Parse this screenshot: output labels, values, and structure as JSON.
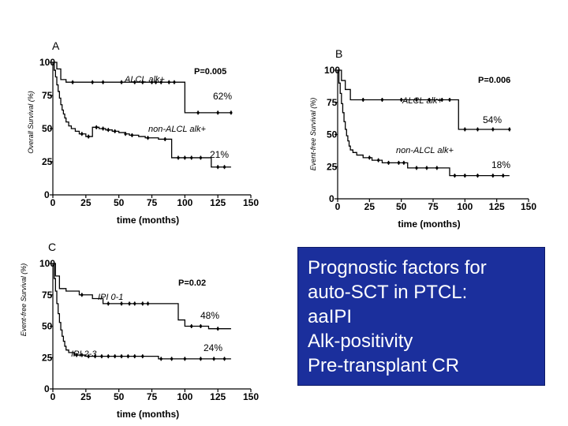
{
  "chart_data": [
    {
      "type": "line",
      "panel": "A",
      "ylabel": "Overall Survival (%)",
      "xlabel": "time (months)",
      "xticks": [
        "0",
        "25",
        "50",
        "75",
        "100",
        "125",
        "150"
      ],
      "yticks": [
        "0",
        "25",
        "50",
        "75",
        "100"
      ],
      "xlim": [
        0,
        150
      ],
      "ylim": [
        0,
        100
      ],
      "p_value": "P=0.005",
      "series": [
        {
          "name": "ALCL alk+",
          "end_label": "62%",
          "steps": [
            [
              0,
              100
            ],
            [
              3,
              95
            ],
            [
              6,
              87
            ],
            [
              10,
              85
            ],
            [
              95,
              85
            ],
            [
              100,
              62
            ],
            [
              135,
              62
            ]
          ],
          "censors": [
            15,
            30,
            38,
            52,
            62,
            68,
            75,
            78,
            82,
            88,
            92,
            110,
            125,
            135
          ]
        },
        {
          "name": "non-ALCL alk+",
          "end_label": "21%",
          "steps": [
            [
              0,
              100
            ],
            [
              1,
              94
            ],
            [
              2,
              89
            ],
            [
              3,
              83
            ],
            [
              4,
              78
            ],
            [
              5,
              73
            ],
            [
              6,
              68
            ],
            [
              7,
              64
            ],
            [
              8,
              61
            ],
            [
              9,
              58
            ],
            [
              10,
              55
            ],
            [
              12,
              52
            ],
            [
              14,
              50
            ],
            [
              17,
              48
            ],
            [
              20,
              46
            ],
            [
              25,
              44
            ],
            [
              30,
              51
            ],
            [
              35,
              50
            ],
            [
              40,
              49
            ],
            [
              45,
              48
            ],
            [
              50,
              47
            ],
            [
              55,
              46
            ],
            [
              58,
              45
            ],
            [
              65,
              44
            ],
            [
              70,
              43
            ],
            [
              80,
              42
            ],
            [
              90,
              28
            ],
            [
              110,
              28
            ],
            [
              120,
              21
            ],
            [
              135,
              21
            ]
          ],
          "censors": [
            22,
            27,
            33,
            38,
            42,
            47,
            55,
            60,
            72,
            85,
            95,
            100,
            105,
            112,
            125,
            130
          ]
        }
      ]
    },
    {
      "type": "line",
      "panel": "B",
      "ylabel": "Event-free Survival (%)",
      "xlabel": "time (months)",
      "xticks": [
        "0",
        "25",
        "50",
        "75",
        "100",
        "125",
        "150"
      ],
      "yticks": [
        "0",
        "25",
        "50",
        "75",
        "100"
      ],
      "xlim": [
        0,
        150
      ],
      "ylim": [
        0,
        100
      ],
      "p_value": "P=0.006",
      "series": [
        {
          "name": "ALCL alk+",
          "end_label": "54%",
          "steps": [
            [
              0,
              100
            ],
            [
              3,
              92
            ],
            [
              6,
              85
            ],
            [
              10,
              77
            ],
            [
              92,
              77
            ],
            [
              95,
              54
            ],
            [
              135,
              54
            ]
          ],
          "censors": [
            20,
            35,
            50,
            62,
            72,
            82,
            88,
            100,
            110,
            122,
            135
          ]
        },
        {
          "name": "non-ALCL alk+",
          "end_label": "18%",
          "steps": [
            [
              0,
              100
            ],
            [
              1,
              90
            ],
            [
              2,
              82
            ],
            [
              3,
              74
            ],
            [
              4,
              67
            ],
            [
              5,
              60
            ],
            [
              6,
              54
            ],
            [
              7,
              49
            ],
            [
              8,
              45
            ],
            [
              9,
              41
            ],
            [
              10,
              38
            ],
            [
              12,
              36
            ],
            [
              15,
              34
            ],
            [
              20,
              32
            ],
            [
              27,
              30
            ],
            [
              35,
              28
            ],
            [
              45,
              28
            ],
            [
              55,
              24
            ],
            [
              85,
              24
            ],
            [
              88,
              18
            ],
            [
              135,
              18
            ]
          ],
          "censors": [
            25,
            32,
            40,
            48,
            52,
            62,
            70,
            78,
            92,
            100,
            110,
            122,
            130
          ]
        }
      ]
    },
    {
      "type": "line",
      "panel": "C",
      "ylabel": "Event-free Survival (%)",
      "xlabel": "time (months)",
      "xticks": [
        "0",
        "25",
        "50",
        "75",
        "100",
        "125",
        "150"
      ],
      "yticks": [
        "0",
        "25",
        "50",
        "75",
        "100"
      ],
      "xlim": [
        0,
        150
      ],
      "ylim": [
        0,
        100
      ],
      "p_value": "P=0.02",
      "series": [
        {
          "name": "IPI 0-1",
          "end_label": "48%",
          "steps": [
            [
              0,
              100
            ],
            [
              2,
              90
            ],
            [
              5,
              80
            ],
            [
              10,
              78
            ],
            [
              20,
              75
            ],
            [
              30,
              72
            ],
            [
              38,
              68
            ],
            [
              80,
              68
            ],
            [
              95,
              55
            ],
            [
              100,
              50
            ],
            [
              118,
              48
            ],
            [
              135,
              48
            ]
          ],
          "censors": [
            22,
            42,
            52,
            58,
            62,
            68,
            72,
            105,
            112,
            125
          ]
        },
        {
          "name": "IPI 2-3",
          "end_label": "24%",
          "steps": [
            [
              0,
              100
            ],
            [
              1,
              88
            ],
            [
              2,
              78
            ],
            [
              3,
              68
            ],
            [
              4,
              60
            ],
            [
              5,
              53
            ],
            [
              6,
              47
            ],
            [
              7,
              42
            ],
            [
              8,
              38
            ],
            [
              9,
              34
            ],
            [
              10,
              31
            ],
            [
              12,
              29
            ],
            [
              16,
              27
            ],
            [
              25,
              26
            ],
            [
              75,
              26
            ],
            [
              80,
              24
            ],
            [
              135,
              24
            ]
          ],
          "censors": [
            18,
            22,
            27,
            32,
            37,
            42,
            47,
            52,
            57,
            62,
            68,
            82,
            90,
            100,
            112,
            122,
            130
          ]
        }
      ]
    }
  ],
  "takeaway": {
    "lines": [
      "Prognostic factors for",
      "auto-SCT in PTCL:",
      "aaIPI",
      "Alk-positivity",
      "Pre-transplant CR"
    ],
    "bg_color": "#1b2f9c",
    "text_color": "#ffffff"
  }
}
